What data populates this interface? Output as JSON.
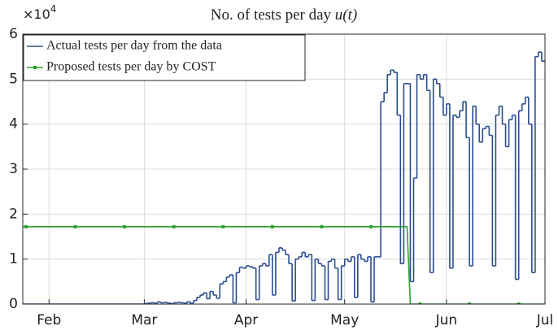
{
  "chart_data": {
    "type": "line",
    "title": "No. of tests per day",
    "title_math": "u(t)",
    "y_scale_base": "×10",
    "y_scale_exponent": "4",
    "x": [
      24,
      25,
      26,
      27,
      28,
      29,
      30,
      31,
      32,
      33,
      34,
      35,
      36,
      37,
      38,
      39,
      40,
      41,
      42,
      43,
      44,
      45,
      46,
      47,
      48,
      49,
      50,
      51,
      52,
      53,
      54,
      55,
      56,
      57,
      58,
      59,
      60,
      61,
      62,
      63,
      64,
      65,
      66,
      67,
      68,
      69,
      70,
      71,
      72,
      73,
      74,
      75,
      76,
      77,
      78,
      79,
      80,
      81,
      82,
      83,
      84,
      85,
      86,
      87,
      88,
      89,
      90,
      91,
      92,
      93,
      94,
      95,
      96,
      97,
      98,
      99,
      100,
      101,
      102,
      103,
      104,
      105,
      106,
      107,
      108,
      109,
      110,
      111,
      112,
      113,
      114,
      115,
      116,
      117,
      118,
      119,
      120,
      121,
      122,
      123,
      124,
      125,
      126,
      127,
      128,
      129,
      130,
      131,
      132,
      133,
      134,
      135,
      136,
      137,
      138,
      139,
      140,
      141,
      142,
      143,
      144,
      145,
      146,
      147,
      148,
      149,
      150,
      151,
      152,
      153,
      154,
      155,
      156,
      157,
      158,
      159,
      160,
      161,
      162,
      163,
      164,
      165,
      166,
      167,
      168,
      169,
      170,
      171,
      172,
      173,
      174,
      175,
      176,
      177,
      178,
      179,
      180,
      181,
      182,
      183
    ],
    "series": [
      {
        "name": "Actual tests per day from the data",
        "color": "#2a4d8f",
        "stairs": true,
        "values": [
          0,
          0,
          0,
          0,
          0,
          0,
          0,
          0,
          0,
          0,
          0,
          0,
          0,
          0,
          0,
          0,
          0,
          0,
          0,
          0,
          0,
          0,
          0,
          0,
          0,
          0,
          0,
          0,
          0,
          0,
          0,
          0,
          0,
          0,
          0,
          0,
          0,
          100,
          200,
          300,
          200,
          500,
          300,
          400,
          200,
          100,
          300,
          400,
          300,
          200,
          500,
          200,
          800,
          1500,
          2000,
          2500,
          1200,
          2800,
          2000,
          1300,
          4500,
          5000,
          6000,
          6500,
          300,
          7000,
          8200,
          8000,
          8500,
          8300,
          8000,
          1000,
          8500,
          9000,
          8500,
          11000,
          2000,
          11500,
          12500,
          12000,
          11000,
          9000,
          700,
          10000,
          10500,
          11500,
          10500,
          11000,
          800,
          10000,
          9000,
          8500,
          1000,
          9500,
          10000,
          8000,
          1000,
          8500,
          10000,
          9500,
          10500,
          1500,
          11000,
          10000,
          9500,
          10500,
          500,
          10500,
          10500,
          45000,
          47000,
          51000,
          52000,
          51500,
          42000,
          9000,
          49000,
          49000,
          5000,
          28000,
          51000,
          50000,
          51000,
          47500,
          7000,
          50000,
          49000,
          46000,
          42000,
          44500,
          8000,
          42000,
          41500,
          43000,
          45000,
          37000,
          8500,
          44000,
          40000,
          36000,
          39000,
          39500,
          37500,
          8500,
          42000,
          44000,
          40000,
          35000,
          41000,
          42000,
          5500,
          43000,
          44500,
          46000,
          40000,
          7000,
          55000,
          56000,
          54000,
          54000
        ]
      },
      {
        "name": "Proposed tests per day by COST",
        "color": "#2ca02c",
        "stairs": false,
        "marker_every": 15,
        "marker_start": 1,
        "values": [
          17200,
          17200,
          17200,
          17200,
          17200,
          17200,
          17200,
          17200,
          17200,
          17200,
          17200,
          17200,
          17200,
          17200,
          17200,
          17200,
          17200,
          17200,
          17200,
          17200,
          17200,
          17200,
          17200,
          17200,
          17200,
          17200,
          17200,
          17200,
          17200,
          17200,
          17200,
          17200,
          17200,
          17200,
          17200,
          17200,
          17200,
          17200,
          17200,
          17200,
          17200,
          17200,
          17200,
          17200,
          17200,
          17200,
          17200,
          17200,
          17200,
          17200,
          17200,
          17200,
          17200,
          17200,
          17200,
          17200,
          17200,
          17200,
          17200,
          17200,
          17200,
          17200,
          17200,
          17200,
          17200,
          17200,
          17200,
          17200,
          17200,
          17200,
          17200,
          17200,
          17200,
          17200,
          17200,
          17200,
          17200,
          17200,
          17200,
          17200,
          17200,
          17200,
          17200,
          17200,
          17200,
          17200,
          17200,
          17200,
          17200,
          17200,
          17200,
          17200,
          17200,
          17200,
          17200,
          17200,
          17200,
          17200,
          17200,
          17200,
          17200,
          17200,
          17200,
          17200,
          17200,
          17200,
          17200,
          17200,
          17200,
          17200,
          17200,
          17200,
          17200,
          17200,
          17200,
          17200,
          17200,
          17200,
          0,
          0,
          0,
          0,
          0,
          0,
          0,
          0,
          0,
          0,
          0,
          0,
          0,
          0,
          0,
          0,
          0,
          0,
          0,
          0,
          0,
          0,
          0,
          0,
          0,
          0,
          0,
          0,
          0,
          0,
          0,
          0,
          0,
          0,
          0,
          0,
          0,
          0,
          0,
          0,
          0,
          0
        ]
      }
    ],
    "xlim": [
      24,
      183
    ],
    "xticks": [
      {
        "value": 32,
        "label": "Feb"
      },
      {
        "value": 61,
        "label": "Mar"
      },
      {
        "value": 92,
        "label": "Apr"
      },
      {
        "value": 122,
        "label": "May"
      },
      {
        "value": 153,
        "label": "Jun"
      },
      {
        "value": 183,
        "label": "Jul"
      }
    ],
    "ylim": [
      0,
      60000
    ],
    "yticks": [
      {
        "value": 0,
        "label": "0"
      },
      {
        "value": 10000,
        "label": "1"
      },
      {
        "value": 20000,
        "label": "2"
      },
      {
        "value": 30000,
        "label": "3"
      },
      {
        "value": 40000,
        "label": "4"
      },
      {
        "value": 50000,
        "label": "5"
      },
      {
        "value": 60000,
        "label": "6"
      }
    ],
    "grid": true,
    "legend": "top-left"
  }
}
